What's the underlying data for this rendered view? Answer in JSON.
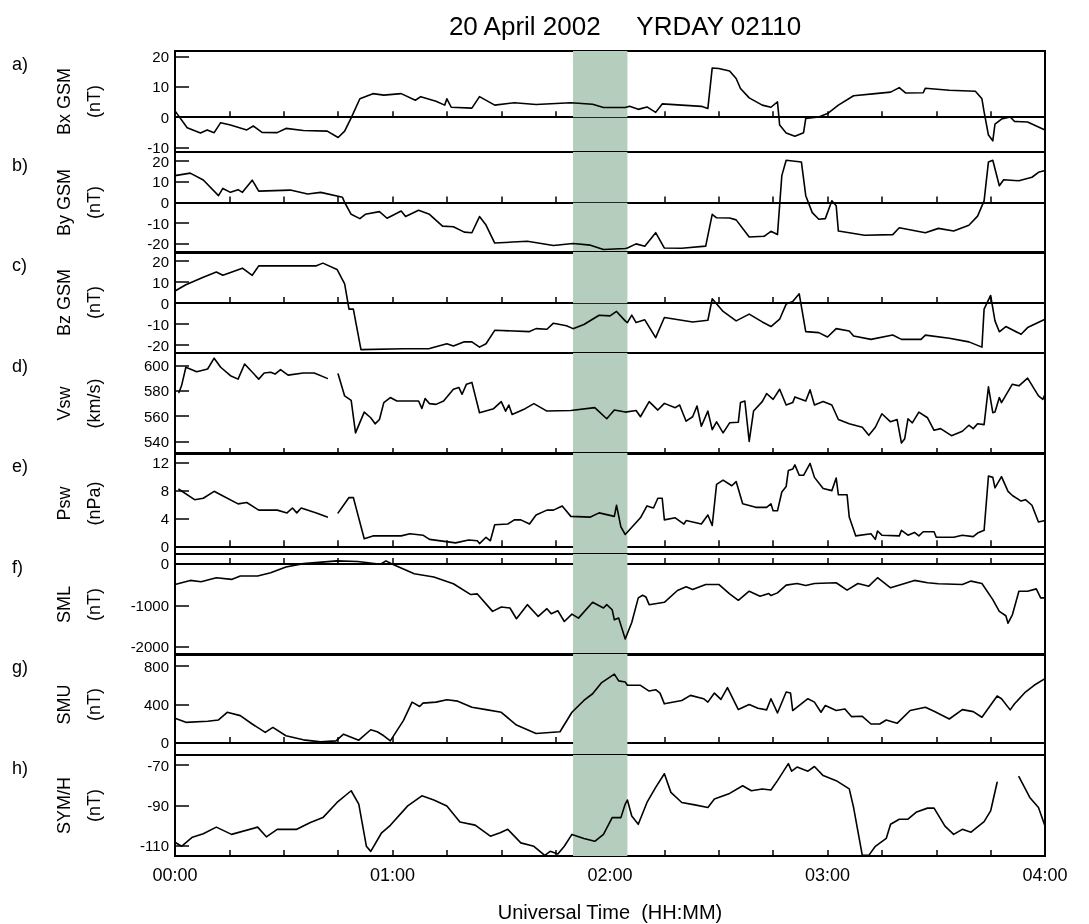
{
  "chart_data": [
    {
      "type": "line",
      "title": "20 April 2002     YRDAY 02110",
      "ylabel": "Bx GSM (nT)",
      "annotations": [
        "a)"
      ],
      "color": "#000000",
      "tick_labels": "y",
      "xlim": [
        0,
        4
      ],
      "xticks": [
        {
          "value": 0,
          "label": null
        },
        {
          "value": 0.25,
          "label": null
        },
        {
          "value": 0.5,
          "label": null
        },
        {
          "value": 0.75,
          "label": null
        },
        {
          "value": 1,
          "label": null
        },
        {
          "value": 1.25,
          "label": null
        },
        {
          "value": 1.5,
          "label": null
        },
        {
          "value": 1.75,
          "label": null
        },
        {
          "value": 2,
          "label": null
        },
        {
          "value": 2.25,
          "label": null
        },
        {
          "value": 2.5,
          "label": null
        },
        {
          "value": 2.75,
          "label": null
        },
        {
          "value": 3,
          "label": null
        },
        {
          "value": 3.25,
          "label": null
        },
        {
          "value": 3.5,
          "label": null
        },
        {
          "value": 3.75,
          "label": null
        },
        {
          "value": 4,
          "label": null
        }
      ],
      "ylim": [
        -11.5,
        21.9
      ],
      "yticks": [
        -10,
        0,
        10,
        20
      ],
      "ref_lines": [
        {
          "axis": "y",
          "value": 0
        }
      ],
      "bands": [
        {
          "axis": "x",
          "from": 1.83,
          "to": 2.08,
          "color": "#b4cdbd"
        }
      ],
      "x": [
        0,
        0.056,
        0.117,
        0.148,
        0.18,
        0.21,
        0.255,
        0.33,
        0.36,
        0.4,
        0.47,
        0.51,
        0.59,
        0.7,
        0.75,
        0.78,
        0.81,
        0.85,
        0.91,
        0.96,
        1.04,
        1.105,
        1.13,
        1.2,
        1.24,
        1.25,
        1.27,
        1.365,
        1.4,
        1.47,
        1.56,
        1.66,
        1.82,
        1.92,
        1.97,
        2.07,
        2.09,
        2.13,
        2.17,
        2.21,
        2.24,
        2.33,
        2.42,
        2.45,
        2.47,
        2.5,
        2.55,
        2.58,
        2.6,
        2.64,
        2.7,
        2.74,
        2.77,
        2.78,
        2.81,
        2.85,
        2.89,
        2.9,
        2.96,
        3.0,
        3.05,
        3.12,
        3.22,
        3.29,
        3.33,
        3.36,
        3.44,
        3.45,
        3.56,
        3.68,
        3.71,
        3.72,
        3.74,
        3.76,
        3.77,
        3.8,
        3.84,
        3.86,
        3.92,
        4.0
      ],
      "values": [
        2.1,
        -3.5,
        -5.2,
        -4.2,
        -5.1,
        -1.8,
        -2.6,
        -4.2,
        -2.9,
        -5.0,
        -5.1,
        -3.7,
        -4.4,
        -4.6,
        -6.7,
        -4.6,
        -0.2,
        6.1,
        7.8,
        7.3,
        7.8,
        5.6,
        6.8,
        5.3,
        4.0,
        6.1,
        3.3,
        3.0,
        6.8,
        4.0,
        4.8,
        4.2,
        4.8,
        4.3,
        3.2,
        3.2,
        3.6,
        2.6,
        3.4,
        1.6,
        4.4,
        4.0,
        3.6,
        2.9,
        16.3,
        16.1,
        15.3,
        12.8,
        9.5,
        6.4,
        4.0,
        3.3,
        5.1,
        -2.6,
        -5.2,
        -6.3,
        -5.1,
        -0.4,
        0.1,
        1.2,
        4.0,
        7.1,
        7.8,
        8.3,
        9.8,
        8.0,
        8.1,
        9.6,
        8.9,
        8.6,
        6.1,
        1.8,
        -5.9,
        -7.8,
        -2.3,
        -0.6,
        0.1,
        -1.4,
        -1.6,
        -4.2
      ]
    },
    {
      "type": "line",
      "ylabel": "By GSM (nT)",
      "annotations": [
        "b)"
      ],
      "color": "#000000",
      "tick_labels": "y",
      "xlim": [
        0,
        4
      ],
      "xticks": [
        {
          "value": 0,
          "label": null
        },
        {
          "value": 0.25,
          "label": null
        },
        {
          "value": 0.5,
          "label": null
        },
        {
          "value": 0.75,
          "label": null
        },
        {
          "value": 1,
          "label": null
        },
        {
          "value": 1.25,
          "label": null
        },
        {
          "value": 1.5,
          "label": null
        },
        {
          "value": 1.75,
          "label": null
        },
        {
          "value": 2,
          "label": null
        },
        {
          "value": 2.25,
          "label": null
        },
        {
          "value": 2.5,
          "label": null
        },
        {
          "value": 2.75,
          "label": null
        },
        {
          "value": 3,
          "label": null
        },
        {
          "value": 3.25,
          "label": null
        },
        {
          "value": 3.5,
          "label": null
        },
        {
          "value": 3.75,
          "label": null
        },
        {
          "value": 4,
          "label": null
        }
      ],
      "ylim": [
        -24.4,
        24.4
      ],
      "yticks": [
        -20,
        -10,
        0,
        10,
        20
      ],
      "ref_lines": [
        {
          "axis": "y",
          "value": 0
        }
      ],
      "bands": [
        {
          "axis": "x",
          "from": 1.83,
          "to": 2.08,
          "color": "#b4cdbd"
        }
      ],
      "x": [
        0,
        0.07,
        0.13,
        0.2,
        0.22,
        0.255,
        0.29,
        0.31,
        0.355,
        0.385,
        0.53,
        0.61,
        0.67,
        0.77,
        0.78,
        0.81,
        0.85,
        0.875,
        0.94,
        0.975,
        1.04,
        1.06,
        1.12,
        1.17,
        1.23,
        1.28,
        1.33,
        1.365,
        1.4,
        1.43,
        1.47,
        1.62,
        1.74,
        1.83,
        1.91,
        1.97,
        2.07,
        2.08,
        2.12,
        2.16,
        2.21,
        2.25,
        2.33,
        2.44,
        2.47,
        2.49,
        2.55,
        2.58,
        2.64,
        2.71,
        2.74,
        2.77,
        2.79,
        2.81,
        2.88,
        2.9,
        2.93,
        2.96,
        2.99,
        3.02,
        3.04,
        3.05,
        3.1,
        3.17,
        3.3,
        3.33,
        3.45,
        3.51,
        3.58,
        3.65,
        3.69,
        3.72,
        3.74,
        3.76,
        3.79,
        3.81,
        3.88,
        3.94,
        3.97,
        4.0
      ],
      "values": [
        13.0,
        14.2,
        10.9,
        3.3,
        6.8,
        4.9,
        6.2,
        4.9,
        10.8,
        5.5,
        6.0,
        4.1,
        4.9,
        2.5,
        0,
        -5.7,
        -7.8,
        -5.7,
        -4.4,
        -7.6,
        -4.1,
        -6.8,
        -3.7,
        -5.7,
        -11.4,
        -11.7,
        -14.3,
        -14.6,
        -6.8,
        -10.9,
        -19.6,
        -18.7,
        -20.8,
        -19.8,
        -20.6,
        -22.7,
        -22.2,
        -22.0,
        -20.0,
        -21.1,
        -14.6,
        -22.0,
        -22.1,
        -21.1,
        -5.7,
        -7.4,
        -7.5,
        -8.4,
        -16.7,
        -16.3,
        -13.9,
        -15.5,
        13.0,
        20.4,
        19.6,
        3.3,
        -4.9,
        -8.1,
        -7.8,
        0.8,
        -1.6,
        -13.8,
        -14.6,
        -15.8,
        -15.5,
        -12.2,
        -14.6,
        -12.5,
        -13.8,
        -11.0,
        -6.6,
        0.8,
        19.6,
        20.4,
        8.1,
        11.0,
        10.5,
        12.2,
        14.6,
        15.5
      ]
    },
    {
      "type": "line",
      "ylabel": "Bz GSM (nT)",
      "annotations": [
        "c)"
      ],
      "color": "#000000",
      "tick_labels": "y",
      "xlim": [
        0,
        4
      ],
      "xticks": [
        {
          "value": 0,
          "label": null
        },
        {
          "value": 0.25,
          "label": null
        },
        {
          "value": 0.5,
          "label": null
        },
        {
          "value": 0.75,
          "label": null
        },
        {
          "value": 1,
          "label": null
        },
        {
          "value": 1.25,
          "label": null
        },
        {
          "value": 1.5,
          "label": null
        },
        {
          "value": 1.75,
          "label": null
        },
        {
          "value": 2,
          "label": null
        },
        {
          "value": 2.25,
          "label": null
        },
        {
          "value": 2.5,
          "label": null
        },
        {
          "value": 2.75,
          "label": null
        },
        {
          "value": 3,
          "label": null
        },
        {
          "value": 3.25,
          "label": null
        },
        {
          "value": 3.5,
          "label": null
        },
        {
          "value": 3.75,
          "label": null
        },
        {
          "value": 4,
          "label": null
        }
      ],
      "ylim": [
        -23.8,
        24.3
      ],
      "yticks": [
        -20,
        -10,
        0,
        10,
        20
      ],
      "ref_lines": [
        {
          "axis": "y",
          "value": 0
        }
      ],
      "bands": [
        {
          "axis": "x",
          "from": 1.83,
          "to": 2.08,
          "color": "#b4cdbd"
        }
      ],
      "x": [
        0,
        0.05,
        0.13,
        0.19,
        0.22,
        0.31,
        0.355,
        0.385,
        0.65,
        0.68,
        0.745,
        0.78,
        0.8,
        0.82,
        0.855,
        1.05,
        1.17,
        1.25,
        1.28,
        1.33,
        1.365,
        1.4,
        1.43,
        1.47,
        1.63,
        1.66,
        1.71,
        1.74,
        1.8,
        1.83,
        1.88,
        1.95,
        2.0,
        2.03,
        2.07,
        2.08,
        2.1,
        2.12,
        2.16,
        2.21,
        2.25,
        2.38,
        2.45,
        2.47,
        2.52,
        2.58,
        2.64,
        2.7,
        2.74,
        2.78,
        2.81,
        2.84,
        2.87,
        2.9,
        2.96,
        3.0,
        3.04,
        3.1,
        3.12,
        3.2,
        3.3,
        3.34,
        3.43,
        3.45,
        3.56,
        3.65,
        3.71,
        3.72,
        3.75,
        3.77,
        3.79,
        3.82,
        3.89,
        3.92,
        4.0
      ],
      "values": [
        5.7,
        8.7,
        12.3,
        14.8,
        13.2,
        16.6,
        13.2,
        17.7,
        17.7,
        19.0,
        16.0,
        9.1,
        -2.9,
        -2.9,
        -22.2,
        -21.8,
        -21.7,
        -19.4,
        -20.5,
        -18.5,
        -18.5,
        -21.0,
        -19.4,
        -13.0,
        -13.6,
        -12.2,
        -12.5,
        -9.6,
        -10.8,
        -12.2,
        -10.2,
        -5.8,
        -6.1,
        -4.0,
        -8.5,
        -9.3,
        -5.8,
        -9.3,
        -8.0,
        -16.5,
        -6.9,
        -9.0,
        -8.2,
        2.0,
        -4.0,
        -8.5,
        -5.3,
        -9.0,
        -11.2,
        -7.7,
        -0.5,
        0.7,
        4.4,
        -13.6,
        -14.1,
        -16.2,
        -12.2,
        -13.3,
        -15.7,
        -17.3,
        -15.2,
        -17.3,
        -17.3,
        -15.3,
        -16.8,
        -18.5,
        -21.0,
        -2.9,
        3.6,
        -8.5,
        -13.7,
        -11.2,
        -14.9,
        -11.7,
        -7.7
      ]
    },
    {
      "type": "line",
      "ylabel": "Vsw (km/s)",
      "annotations": [
        "d)"
      ],
      "color": "#000000",
      "tick_labels": "y",
      "xlim": [
        0,
        4
      ],
      "xticks": [
        {
          "value": 0,
          "label": null
        },
        {
          "value": 0.25,
          "label": null
        },
        {
          "value": 0.5,
          "label": null
        },
        {
          "value": 0.75,
          "label": null
        },
        {
          "value": 1,
          "label": null
        },
        {
          "value": 1.25,
          "label": null
        },
        {
          "value": 1.5,
          "label": null
        },
        {
          "value": 1.75,
          "label": null
        },
        {
          "value": 2,
          "label": null
        },
        {
          "value": 2.25,
          "label": null
        },
        {
          "value": 2.5,
          "label": null
        },
        {
          "value": 2.75,
          "label": null
        },
        {
          "value": 3,
          "label": null
        },
        {
          "value": 3.25,
          "label": null
        },
        {
          "value": 3.5,
          "label": null
        },
        {
          "value": 3.75,
          "label": null
        },
        {
          "value": 4,
          "label": null
        }
      ],
      "ylim": [
        530,
        610
      ],
      "yticks": [
        540,
        560,
        580,
        600
      ],
      "bands": [
        {
          "axis": "x",
          "from": 1.83,
          "to": 2.08,
          "color": "#b4cdbd"
        }
      ],
      "x": [
        0.018,
        0.03,
        0.05,
        0.1,
        0.15,
        0.18,
        0.21,
        0.255,
        0.29,
        0.32,
        0.385,
        0.41,
        0.44,
        0.46,
        0.485,
        0.52,
        0.59,
        0.64,
        0.7,
        0.725,
        0.75,
        0.78,
        0.81,
        0.83,
        0.87,
        0.9,
        0.92,
        0.94,
        0.96,
        0.99,
        1.02,
        1.08,
        1.12,
        1.135,
        1.15,
        1.17,
        1.2,
        1.235,
        1.28,
        1.305,
        1.32,
        1.34,
        1.365,
        1.4,
        1.465,
        1.5,
        1.52,
        1.535,
        1.55,
        1.61,
        1.65,
        1.71,
        1.82,
        1.93,
        1.985,
        2.02,
        2.07,
        2.12,
        2.14,
        2.18,
        2.22,
        2.25,
        2.3,
        2.32,
        2.35,
        2.38,
        2.4,
        2.42,
        2.45,
        2.47,
        2.49,
        2.52,
        2.55,
        2.59,
        2.6,
        2.62,
        2.64,
        2.66,
        2.7,
        2.72,
        2.75,
        2.78,
        2.81,
        2.84,
        2.85,
        2.9,
        2.92,
        2.94,
        2.98,
        3.02,
        3.05,
        3.1,
        3.16,
        3.19,
        3.22,
        3.25,
        3.29,
        3.32,
        3.34,
        3.355,
        3.37,
        3.39,
        3.42,
        3.46,
        3.49,
        3.52,
        3.57,
        3.62,
        3.65,
        3.67,
        3.69,
        3.72,
        3.74,
        3.76,
        3.77,
        3.79,
        3.8,
        3.85,
        3.88,
        3.92,
        3.97,
        3.99,
        4.0
      ],
      "values": [
        578.7,
        584,
        598.7,
        595.2,
        597.3,
        605.9,
        598.7,
        592,
        589.3,
        601.3,
        589.3,
        594.1,
        594.7,
        593.3,
        596.8,
        592.5,
        594.1,
        594.1,
        589.9,
        null,
        593.3,
        576,
        572.5,
        546.7,
        563.2,
        558.7,
        553.9,
        557.3,
        570.7,
        574.7,
        572,
        572,
        572,
        566.1,
        573.9,
        569.9,
        569.3,
        572,
        581.3,
        582.7,
        577.3,
        585.3,
        586.7,
        562.7,
        565.9,
        571.5,
        564,
        568.8,
        561.3,
        565.9,
        569.9,
        564,
        564.5,
        566.7,
        557.9,
        564.8,
        563.2,
        564.5,
        559.5,
        571.5,
        564.8,
        570.1,
        566.7,
        568.8,
        556,
        559.5,
        568,
        552,
        564,
        549.3,
        555.5,
        546.7,
        554.7,
        555.2,
        570.7,
        572,
        540,
        564,
        571.5,
        577.9,
        573.3,
        581.3,
        568.8,
        570.7,
        575.2,
        572,
        580.8,
        568.8,
        571.5,
        568.8,
        557.3,
        553.9,
        551.2,
        544.8,
        551.2,
        561.9,
        555.5,
        557.3,
        538.7,
        542.1,
        557.9,
        554.7,
        563.2,
        558.7,
        548.8,
        550.1,
        544.5,
        548,
        552.8,
        550.1,
        553.9,
        553.3,
        583.2,
        562.7,
        563.2,
        574.7,
        570.7,
        585.3,
        584,
        590.1,
        576,
        573.3,
        577.3
      ]
    },
    {
      "type": "line",
      "ylabel": "Psw (nPa)",
      "annotations": [
        "e)"
      ],
      "color": "#000000",
      "tick_labels": "y",
      "xlim": [
        0,
        4
      ],
      "xticks": [
        {
          "value": 0,
          "label": null
        },
        {
          "value": 0.25,
          "label": null
        },
        {
          "value": 0.5,
          "label": null
        },
        {
          "value": 0.75,
          "label": null
        },
        {
          "value": 1,
          "label": null
        },
        {
          "value": 1.25,
          "label": null
        },
        {
          "value": 1.5,
          "label": null
        },
        {
          "value": 1.75,
          "label": null
        },
        {
          "value": 2,
          "label": null
        },
        {
          "value": 2.25,
          "label": null
        },
        {
          "value": 2.5,
          "label": null
        },
        {
          "value": 2.75,
          "label": null
        },
        {
          "value": 3,
          "label": null
        },
        {
          "value": 3.25,
          "label": null
        },
        {
          "value": 3.5,
          "label": null
        },
        {
          "value": 3.75,
          "label": null
        },
        {
          "value": 4,
          "label": null
        }
      ],
      "ylim": [
        -1.1,
        13.4
      ],
      "yticks": [
        0,
        4,
        8,
        12
      ],
      "bands": [
        {
          "axis": "x",
          "from": 1.83,
          "to": 2.08,
          "color": "#b4cdbd"
        }
      ],
      "x": [
        0.018,
        0.09,
        0.13,
        0.18,
        0.21,
        0.29,
        0.33,
        0.385,
        0.47,
        0.515,
        0.54,
        0.56,
        0.58,
        0.65,
        0.7,
        0.725,
        0.75,
        0.8,
        0.82,
        0.87,
        0.91,
        1.04,
        1.08,
        1.14,
        1.17,
        1.29,
        1.35,
        1.39,
        1.4,
        1.43,
        1.45,
        1.47,
        1.53,
        1.56,
        1.59,
        1.63,
        1.66,
        1.71,
        1.74,
        1.78,
        1.82,
        1.91,
        1.95,
        2.02,
        2.03,
        2.05,
        2.07,
        2.14,
        2.17,
        2.2,
        2.22,
        2.24,
        2.25,
        2.3,
        2.34,
        2.35,
        2.42,
        2.45,
        2.47,
        2.49,
        2.52,
        2.56,
        2.58,
        2.61,
        2.67,
        2.72,
        2.74,
        2.75,
        2.77,
        2.79,
        2.81,
        2.82,
        2.84,
        2.85,
        2.87,
        2.89,
        2.92,
        2.94,
        2.98,
        3.02,
        3.04,
        3.05,
        3.09,
        3.1,
        3.13,
        3.2,
        3.22,
        3.23,
        3.25,
        3.33,
        3.34,
        3.37,
        3.4,
        3.42,
        3.44,
        3.49,
        3.5,
        3.58,
        3.62,
        3.67,
        3.69,
        3.72,
        3.74,
        3.76,
        3.77,
        3.8,
        3.83,
        3.85,
        3.89,
        3.91,
        3.94,
        3.97,
        4.0
      ],
      "values": [
        8.2,
        6.7,
        6.9,
        7.9,
        7.4,
        6.1,
        6.3,
        5.2,
        5.2,
        4.8,
        5.5,
        4.8,
        5.5,
        4.8,
        4.2,
        null,
        4.8,
        7.0,
        7.0,
        1.1,
        1.5,
        1.5,
        1.8,
        1.6,
        1.0,
        0.5,
        0.9,
        0.8,
        0.4,
        1.3,
        0.8,
        3.1,
        3.2,
        3.8,
        3.8,
        3.2,
        4.5,
        5.2,
        5.2,
        5.8,
        4.3,
        4.2,
        4.8,
        4.3,
        5.9,
        2.8,
        1.7,
        4.1,
        5.8,
        5.5,
        6.9,
        6.9,
        3.8,
        4.1,
        3.2,
        3.7,
        3.2,
        4.5,
        3.0,
        8.9,
        9.5,
        8.7,
        9.3,
        6.1,
        5.6,
        5.6,
        6.1,
        5.1,
        5.1,
        7.8,
        8.6,
        10.9,
        11.1,
        11.7,
        10.2,
        10.2,
        11.9,
        9.9,
        8.3,
        8.0,
        9.8,
        7.4,
        7.4,
        4.2,
        1.5,
        1.8,
        1.0,
        2.2,
        1.6,
        1.5,
        2.3,
        1.6,
        2.0,
        1.5,
        2.1,
        2.1,
        1.3,
        1.3,
        1.6,
        1.4,
        1.9,
        2.3,
        10.1,
        9.9,
        8.4,
        10,
        7.9,
        7.3,
        6.5,
        6.7,
        5.9,
        3.5,
        3.7
      ]
    },
    {
      "type": "line",
      "ylabel": "SML (nT)",
      "annotations": [
        "f)"
      ],
      "color": "#000000",
      "tick_labels": "y",
      "xlim": [
        0,
        4
      ],
      "xticks": [
        {
          "value": 0,
          "label": null
        },
        {
          "value": 0.25,
          "label": null
        },
        {
          "value": 0.5,
          "label": null
        },
        {
          "value": 0.75,
          "label": null
        },
        {
          "value": 1,
          "label": null
        },
        {
          "value": 1.25,
          "label": null
        },
        {
          "value": 1.5,
          "label": null
        },
        {
          "value": 1.75,
          "label": null
        },
        {
          "value": 2,
          "label": null
        },
        {
          "value": 2.25,
          "label": null
        },
        {
          "value": 2.5,
          "label": null
        },
        {
          "value": 2.75,
          "label": null
        },
        {
          "value": 3,
          "label": null
        },
        {
          "value": 3.25,
          "label": null
        },
        {
          "value": 3.5,
          "label": null
        },
        {
          "value": 3.75,
          "label": null
        },
        {
          "value": 4,
          "label": null
        }
      ],
      "ylim": [
        -2200,
        240
      ],
      "yticks": [
        -2000,
        -1000,
        0
      ],
      "bands": [
        {
          "axis": "x",
          "from": 1.83,
          "to": 2.08,
          "color": "#b4cdbd"
        }
      ],
      "x": [
        0,
        0.07,
        0.12,
        0.19,
        0.26,
        0.3,
        0.38,
        0.44,
        0.51,
        0.59,
        0.745,
        0.84,
        0.945,
        0.97,
        1.0,
        1.1,
        1.19,
        1.28,
        1.36,
        1.39,
        1.46,
        1.5,
        1.54,
        1.57,
        1.62,
        1.67,
        1.71,
        1.73,
        1.76,
        1.79,
        1.825,
        1.855,
        1.92,
        1.97,
        1.985,
        2.01,
        2.02,
        2.04,
        2.07,
        2.1,
        2.13,
        2.15,
        2.165,
        2.18,
        2.25,
        2.31,
        2.35,
        2.38,
        2.44,
        2.5,
        2.55,
        2.59,
        2.64,
        2.69,
        2.73,
        2.74,
        2.77,
        2.81,
        2.86,
        2.9,
        2.94,
        3.04,
        3.09,
        3.14,
        3.19,
        3.23,
        3.29,
        3.4,
        3.46,
        3.51,
        3.62,
        3.66,
        3.71,
        3.76,
        3.79,
        3.82,
        3.83,
        3.85,
        3.88,
        3.92,
        3.96,
        3.98,
        4.0
      ],
      "values": [
        -496,
        -398,
        -431,
        -333,
        -374,
        -293,
        -293,
        -211,
        -73,
        8,
        73,
        57,
        -8,
        73,
        -8,
        -236,
        -317,
        -480,
        -740,
        -724,
        -1146,
        -1041,
        -1065,
        -1325,
        -984,
        -1268,
        -1081,
        -1203,
        -1130,
        -1390,
        -1211,
        -1309,
        -927,
        -1065,
        -984,
        -1106,
        -1350,
        -1309,
        -1813,
        -1415,
        -821,
        -756,
        -797,
        -984,
        -927,
        -642,
        -553,
        -618,
        -496,
        -496,
        -724,
        -878,
        -659,
        -781,
        -715,
        -764,
        -699,
        -512,
        -472,
        -520,
        -472,
        -455,
        -634,
        -472,
        -537,
        -333,
        -577,
        -398,
        -455,
        -480,
        -496,
        -415,
        -472,
        -862,
        -1146,
        -1252,
        -1431,
        -1228,
        -659,
        -659,
        -602,
        -821,
        -821
      ]
    },
    {
      "type": "line",
      "ylabel": "SMU (nT)",
      "annotations": [
        "g)"
      ],
      "color": "#000000",
      "tick_labels": "y",
      "xlim": [
        0,
        4
      ],
      "xticks": [
        {
          "value": 0,
          "label": null
        },
        {
          "value": 0.25,
          "label": null
        },
        {
          "value": 0.5,
          "label": null
        },
        {
          "value": 0.75,
          "label": null
        },
        {
          "value": 1,
          "label": null
        },
        {
          "value": 1.25,
          "label": null
        },
        {
          "value": 1.5,
          "label": null
        },
        {
          "value": 1.75,
          "label": null
        },
        {
          "value": 2,
          "label": null
        },
        {
          "value": 2.25,
          "label": null
        },
        {
          "value": 2.5,
          "label": null
        },
        {
          "value": 2.75,
          "label": null
        },
        {
          "value": 3,
          "label": null
        },
        {
          "value": 3.25,
          "label": null
        },
        {
          "value": 3.5,
          "label": null
        },
        {
          "value": 3.75,
          "label": null
        },
        {
          "value": 4,
          "label": null
        }
      ],
      "ylim": [
        -126,
        926
      ],
      "yticks": [
        0,
        400,
        800
      ],
      "bands": [
        {
          "axis": "x",
          "from": 1.83,
          "to": 2.08,
          "color": "#b4cdbd"
        }
      ],
      "x": [
        0,
        0.05,
        0.15,
        0.2,
        0.24,
        0.3,
        0.355,
        0.415,
        0.45,
        0.51,
        0.59,
        0.67,
        0.74,
        0.775,
        0.845,
        0.9,
        0.93,
        0.96,
        0.99,
        1.05,
        1.09,
        1.125,
        1.14,
        1.2,
        1.25,
        1.3,
        1.365,
        1.43,
        1.5,
        1.57,
        1.66,
        1.77,
        1.825,
        1.88,
        1.92,
        1.96,
        2.02,
        2.04,
        2.07,
        2.08,
        2.14,
        2.18,
        2.21,
        2.23,
        2.25,
        2.33,
        2.37,
        2.43,
        2.45,
        2.48,
        2.51,
        2.54,
        2.59,
        2.64,
        2.68,
        2.72,
        2.74,
        2.77,
        2.81,
        2.83,
        2.84,
        2.91,
        2.94,
        2.97,
        2.99,
        3.04,
        3.08,
        3.11,
        3.16,
        3.2,
        3.24,
        3.27,
        3.32,
        3.38,
        3.45,
        3.49,
        3.56,
        3.62,
        3.67,
        3.71,
        3.78,
        3.8,
        3.84,
        3.86,
        3.91,
        3.95,
        4.0
      ],
      "values": [
        256,
        214,
        225,
        239,
        319,
        284,
        197,
        109,
        161,
        74,
        32,
        11,
        21,
        91,
        28,
        137,
        116,
        74,
        21,
        232,
        425,
        379,
        414,
        425,
        449,
        435,
        372,
        347,
        319,
        186,
        98,
        116,
        319,
        442,
        512,
        625,
        716,
        646,
        635,
        600,
        600,
        540,
        554,
        519,
        407,
        442,
        495,
        460,
        425,
        519,
        453,
        575,
        347,
        400,
        361,
        344,
        460,
        312,
        530,
        519,
        337,
        460,
        425,
        319,
        390,
        337,
        354,
        274,
        277,
        197,
        197,
        239,
        204,
        337,
        372,
        330,
        249,
        347,
        326,
        267,
        488,
        460,
        344,
        407,
        530,
        600,
        670
      ]
    },
    {
      "type": "line",
      "ylabel": "SYM/H (nT)",
      "xlabel": "Universal Time  (HH:MM)",
      "annotations": [
        "h)"
      ],
      "color": "#000000",
      "xlim": [
        0,
        4
      ],
      "xticks": [
        {
          "value": 0,
          "label": "00:00"
        },
        {
          "value": 0.25,
          "label": null
        },
        {
          "value": 0.5,
          "label": null
        },
        {
          "value": 0.75,
          "label": null
        },
        {
          "value": 1,
          "label": "01:00"
        },
        {
          "value": 1.25,
          "label": null
        },
        {
          "value": 1.5,
          "label": null
        },
        {
          "value": 1.75,
          "label": null
        },
        {
          "value": 2,
          "label": "02:00"
        },
        {
          "value": 2.25,
          "label": null
        },
        {
          "value": 2.5,
          "label": null
        },
        {
          "value": 2.75,
          "label": null
        },
        {
          "value": 3,
          "label": "03:00"
        },
        {
          "value": 3.25,
          "label": null
        },
        {
          "value": 3.5,
          "label": null
        },
        {
          "value": 3.75,
          "label": null
        },
        {
          "value": 4,
          "label": "04:00"
        }
      ],
      "ylim": [
        -115,
        -65
      ],
      "yticks": [
        -110,
        -90,
        -70
      ],
      "bands": [
        {
          "axis": "x",
          "from": 1.83,
          "to": 2.08,
          "color": "#b4cdbd"
        }
      ],
      "x": [
        0,
        0.03,
        0.08,
        0.13,
        0.19,
        0.26,
        0.38,
        0.42,
        0.47,
        0.56,
        0.62,
        0.68,
        0.745,
        0.81,
        0.845,
        0.88,
        0.9,
        0.95,
        0.99,
        1.07,
        1.135,
        1.19,
        1.25,
        1.31,
        1.38,
        1.45,
        1.495,
        1.53,
        1.59,
        1.65,
        1.7,
        1.725,
        1.76,
        1.79,
        1.825,
        1.88,
        1.93,
        1.97,
        2.01,
        2.05,
        2.07,
        2.08,
        2.1,
        2.13,
        2.17,
        2.21,
        2.25,
        2.28,
        2.33,
        2.39,
        2.45,
        2.48,
        2.55,
        2.61,
        2.65,
        2.7,
        2.74,
        2.77,
        2.82,
        2.835,
        2.86,
        2.91,
        2.94,
        2.98,
        3.04,
        3.1,
        3.12,
        3.16,
        3.19,
        3.22,
        3.27,
        3.29,
        3.33,
        3.37,
        3.41,
        3.46,
        3.49,
        3.54,
        3.58,
        3.62,
        3.66,
        3.72,
        3.75,
        3.78,
        3.8,
        3.85,
        3.88,
        3.93,
        3.97,
        4.0
      ],
      "values": [
        -108.2,
        -110.2,
        -105.7,
        -104,
        -100.7,
        -104.3,
        -100.7,
        -105.5,
        -101.8,
        -101.8,
        -98.5,
        -96,
        -88.5,
        -82.7,
        -89.3,
        -110.2,
        -112.7,
        -103.5,
        -99.8,
        -90.2,
        -85.2,
        -87.3,
        -90.2,
        -98.2,
        -99.7,
        -105.2,
        -103.5,
        -101.8,
        -108.5,
        -110.2,
        -114.7,
        -112.7,
        -114,
        -110.2,
        -104.3,
        -106.3,
        -107.7,
        -104.3,
        -96,
        -96,
        -89.3,
        -87.3,
        -95.2,
        -99.3,
        -88.5,
        -81,
        -74.3,
        -83.5,
        -88.5,
        -89.7,
        -91,
        -86.8,
        -84,
        -80.2,
        -82.7,
        -81.8,
        -82.3,
        -77.7,
        -69.3,
        -73,
        -71,
        -73,
        -70.7,
        -75.2,
        -77.7,
        -81.8,
        -91,
        -114.7,
        -114.7,
        -110.2,
        -106.3,
        -99.3,
        -96.8,
        -96.8,
        -93.2,
        -91.3,
        -91.3,
        -100.2,
        -104.3,
        -101.8,
        -103.2,
        -98,
        -92.7,
        -78.5,
        null,
        null,
        -75.7,
        -86,
        -91,
        -100.2
      ]
    }
  ]
}
